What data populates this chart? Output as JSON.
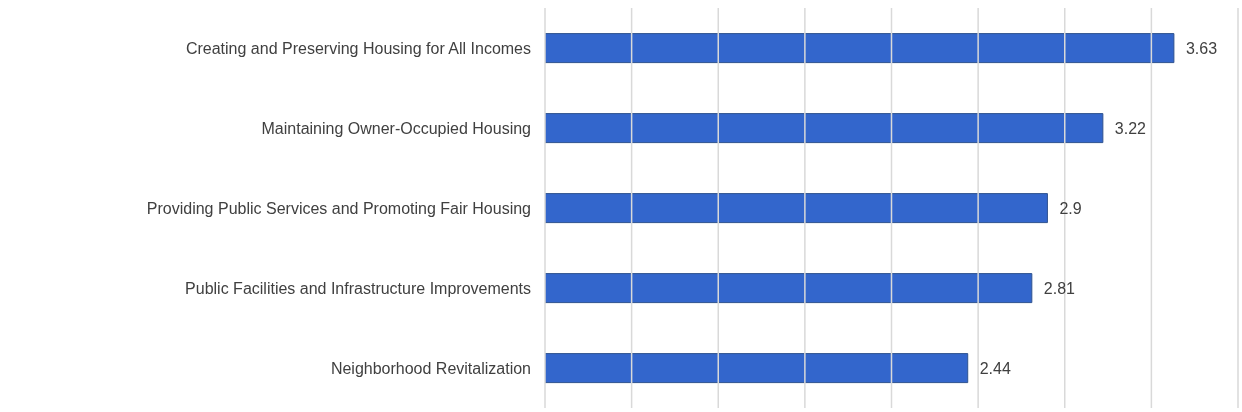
{
  "chart_data": {
    "type": "bar",
    "orientation": "horizontal",
    "categories": [
      "Creating and Preserving Housing for All Incomes",
      "Maintaining Owner-Occupied Housing",
      "Providing Public Services and Promoting Fair Housing",
      "Public Facilities and Infrastructure Improvements",
      "Neighborhood Revitalization"
    ],
    "values": [
      3.63,
      3.22,
      2.9,
      2.81,
      2.44
    ],
    "color": "#3366cc",
    "xlim": [
      0,
      4
    ],
    "xticks": [
      {
        "value": 0,
        "label": null
      },
      {
        "value": 0.5,
        "label": null
      },
      {
        "value": 1,
        "label": null
      },
      {
        "value": 1.5,
        "label": null
      },
      {
        "value": 2,
        "label": null
      },
      {
        "value": 2.5,
        "label": null
      },
      {
        "value": 3,
        "label": null
      },
      {
        "value": 3.5,
        "label": null
      },
      {
        "value": 4,
        "label": null
      }
    ],
    "grid": "x",
    "tick_labels": "y",
    "data_labels": true
  }
}
